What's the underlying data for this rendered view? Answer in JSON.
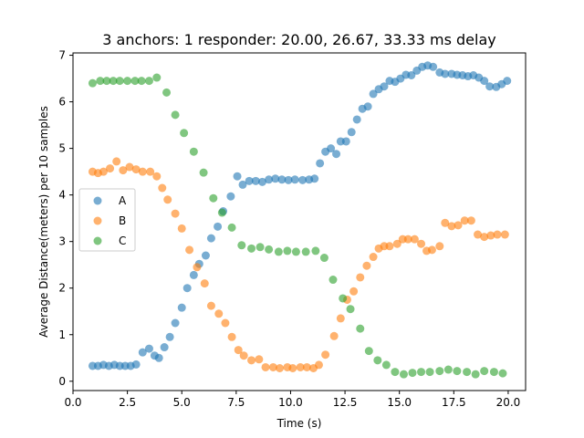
{
  "chart_data": {
    "type": "scatter",
    "title": "3 anchors: 1 responder: 20.00, 26.67, 33.33 ms delay",
    "xlabel": "Time (s)",
    "ylabel": "Average Distance(meters) per 10 samples",
    "xlim": [
      0,
      20.8
    ],
    "ylim": [
      -0.2,
      7.05
    ],
    "xticks": [
      0.0,
      2.5,
      5.0,
      7.5,
      10.0,
      12.5,
      15.0,
      17.5,
      20.0
    ],
    "xtick_labels": [
      "0.0",
      "2.5",
      "5.0",
      "7.5",
      "10.0",
      "12.5",
      "15.0",
      "17.5",
      "20.0"
    ],
    "yticks": [
      0,
      1,
      2,
      3,
      4,
      5,
      6,
      7
    ],
    "ytick_labels": [
      "0",
      "1",
      "2",
      "3",
      "4",
      "5",
      "6",
      "7"
    ],
    "legend_position": "center-left",
    "grid": false,
    "series": [
      {
        "name": "A",
        "color": "#1f77b4",
        "points": [
          [
            0.9,
            0.33
          ],
          [
            1.15,
            0.33
          ],
          [
            1.4,
            0.35
          ],
          [
            1.65,
            0.33
          ],
          [
            1.9,
            0.35
          ],
          [
            2.15,
            0.33
          ],
          [
            2.4,
            0.33
          ],
          [
            2.65,
            0.33
          ],
          [
            2.9,
            0.36
          ],
          [
            3.2,
            0.62
          ],
          [
            3.5,
            0.7
          ],
          [
            3.75,
            0.55
          ],
          [
            3.95,
            0.5
          ],
          [
            4.2,
            0.73
          ],
          [
            4.45,
            0.95
          ],
          [
            4.7,
            1.25
          ],
          [
            5.0,
            1.58
          ],
          [
            5.25,
            2.0
          ],
          [
            5.55,
            2.28
          ],
          [
            5.8,
            2.52
          ],
          [
            6.1,
            2.7
          ],
          [
            6.35,
            3.07
          ],
          [
            6.65,
            3.32
          ],
          [
            6.9,
            3.65
          ],
          [
            7.25,
            3.97
          ],
          [
            7.55,
            4.4
          ],
          [
            7.8,
            4.22
          ],
          [
            8.1,
            4.3
          ],
          [
            8.4,
            4.3
          ],
          [
            8.7,
            4.28
          ],
          [
            9.0,
            4.33
          ],
          [
            9.3,
            4.35
          ],
          [
            9.6,
            4.33
          ],
          [
            9.9,
            4.32
          ],
          [
            10.2,
            4.33
          ],
          [
            10.55,
            4.32
          ],
          [
            10.85,
            4.33
          ],
          [
            11.1,
            4.35
          ],
          [
            11.35,
            4.68
          ],
          [
            11.6,
            4.93
          ],
          [
            11.85,
            5.0
          ],
          [
            12.1,
            4.88
          ],
          [
            12.3,
            5.15
          ],
          [
            12.55,
            5.15
          ],
          [
            12.8,
            5.35
          ],
          [
            13.05,
            5.62
          ],
          [
            13.3,
            5.85
          ],
          [
            13.55,
            5.9
          ],
          [
            13.8,
            6.17
          ],
          [
            14.05,
            6.27
          ],
          [
            14.3,
            6.33
          ],
          [
            14.55,
            6.45
          ],
          [
            14.8,
            6.43
          ],
          [
            15.05,
            6.5
          ],
          [
            15.3,
            6.58
          ],
          [
            15.55,
            6.57
          ],
          [
            15.8,
            6.67
          ],
          [
            16.05,
            6.75
          ],
          [
            16.3,
            6.78
          ],
          [
            16.55,
            6.75
          ],
          [
            16.85,
            6.63
          ],
          [
            17.1,
            6.6
          ],
          [
            17.4,
            6.6
          ],
          [
            17.65,
            6.58
          ],
          [
            17.9,
            6.57
          ],
          [
            18.15,
            6.55
          ],
          [
            18.4,
            6.57
          ],
          [
            18.65,
            6.52
          ],
          [
            18.9,
            6.45
          ],
          [
            19.15,
            6.33
          ],
          [
            19.45,
            6.32
          ],
          [
            19.7,
            6.38
          ],
          [
            19.95,
            6.45
          ]
        ]
      },
      {
        "name": "B",
        "color": "#ff7f0e",
        "points": [
          [
            0.9,
            4.5
          ],
          [
            1.15,
            4.47
          ],
          [
            1.4,
            4.5
          ],
          [
            1.7,
            4.57
          ],
          [
            2.0,
            4.72
          ],
          [
            2.3,
            4.53
          ],
          [
            2.6,
            4.6
          ],
          [
            2.9,
            4.55
          ],
          [
            3.2,
            4.5
          ],
          [
            3.55,
            4.5
          ],
          [
            3.85,
            4.4
          ],
          [
            4.1,
            4.15
          ],
          [
            4.35,
            3.9
          ],
          [
            4.7,
            3.6
          ],
          [
            5.0,
            3.28
          ],
          [
            5.35,
            2.82
          ],
          [
            5.7,
            2.45
          ],
          [
            6.05,
            2.1
          ],
          [
            6.35,
            1.62
          ],
          [
            6.7,
            1.45
          ],
          [
            7.0,
            1.25
          ],
          [
            7.3,
            0.95
          ],
          [
            7.6,
            0.67
          ],
          [
            7.85,
            0.55
          ],
          [
            8.2,
            0.45
          ],
          [
            8.55,
            0.47
          ],
          [
            8.85,
            0.3
          ],
          [
            9.2,
            0.3
          ],
          [
            9.5,
            0.28
          ],
          [
            9.85,
            0.3
          ],
          [
            10.1,
            0.28
          ],
          [
            10.45,
            0.3
          ],
          [
            10.75,
            0.3
          ],
          [
            11.05,
            0.28
          ],
          [
            11.3,
            0.35
          ],
          [
            11.6,
            0.57
          ],
          [
            12.0,
            0.97
          ],
          [
            12.3,
            1.35
          ],
          [
            12.6,
            1.75
          ],
          [
            12.9,
            1.93
          ],
          [
            13.2,
            2.23
          ],
          [
            13.5,
            2.48
          ],
          [
            13.8,
            2.67
          ],
          [
            14.05,
            2.85
          ],
          [
            14.3,
            2.9
          ],
          [
            14.55,
            2.9
          ],
          [
            14.9,
            2.95
          ],
          [
            15.15,
            3.05
          ],
          [
            15.4,
            3.05
          ],
          [
            15.7,
            3.05
          ],
          [
            16.0,
            2.95
          ],
          [
            16.25,
            2.8
          ],
          [
            16.5,
            2.82
          ],
          [
            16.85,
            2.9
          ],
          [
            17.1,
            3.4
          ],
          [
            17.4,
            3.33
          ],
          [
            17.7,
            3.35
          ],
          [
            18.0,
            3.45
          ],
          [
            18.3,
            3.45
          ],
          [
            18.6,
            3.15
          ],
          [
            18.9,
            3.1
          ],
          [
            19.2,
            3.13
          ],
          [
            19.5,
            3.15
          ],
          [
            19.85,
            3.15
          ]
        ]
      },
      {
        "name": "C",
        "color": "#2ca02c",
        "points": [
          [
            0.9,
            6.4
          ],
          [
            1.25,
            6.45
          ],
          [
            1.55,
            6.45
          ],
          [
            1.85,
            6.45
          ],
          [
            2.15,
            6.45
          ],
          [
            2.5,
            6.45
          ],
          [
            2.85,
            6.45
          ],
          [
            3.15,
            6.45
          ],
          [
            3.5,
            6.45
          ],
          [
            3.85,
            6.52
          ],
          [
            4.3,
            6.2
          ],
          [
            4.7,
            5.72
          ],
          [
            5.1,
            5.33
          ],
          [
            5.55,
            4.93
          ],
          [
            6.0,
            4.48
          ],
          [
            6.45,
            3.93
          ],
          [
            6.85,
            3.62
          ],
          [
            7.3,
            3.3
          ],
          [
            7.75,
            2.92
          ],
          [
            8.2,
            2.85
          ],
          [
            8.6,
            2.88
          ],
          [
            9.0,
            2.83
          ],
          [
            9.45,
            2.78
          ],
          [
            9.85,
            2.8
          ],
          [
            10.25,
            2.78
          ],
          [
            10.7,
            2.78
          ],
          [
            11.15,
            2.8
          ],
          [
            11.55,
            2.65
          ],
          [
            11.95,
            2.18
          ],
          [
            12.4,
            1.78
          ],
          [
            12.75,
            1.55
          ],
          [
            13.2,
            1.13
          ],
          [
            13.6,
            0.65
          ],
          [
            14.0,
            0.45
          ],
          [
            14.4,
            0.35
          ],
          [
            14.8,
            0.2
          ],
          [
            15.2,
            0.15
          ],
          [
            15.6,
            0.18
          ],
          [
            16.0,
            0.2
          ],
          [
            16.4,
            0.2
          ],
          [
            16.85,
            0.22
          ],
          [
            17.25,
            0.25
          ],
          [
            17.65,
            0.22
          ],
          [
            18.1,
            0.2
          ],
          [
            18.5,
            0.15
          ],
          [
            18.9,
            0.22
          ],
          [
            19.35,
            0.2
          ],
          [
            19.75,
            0.17
          ]
        ]
      }
    ]
  }
}
